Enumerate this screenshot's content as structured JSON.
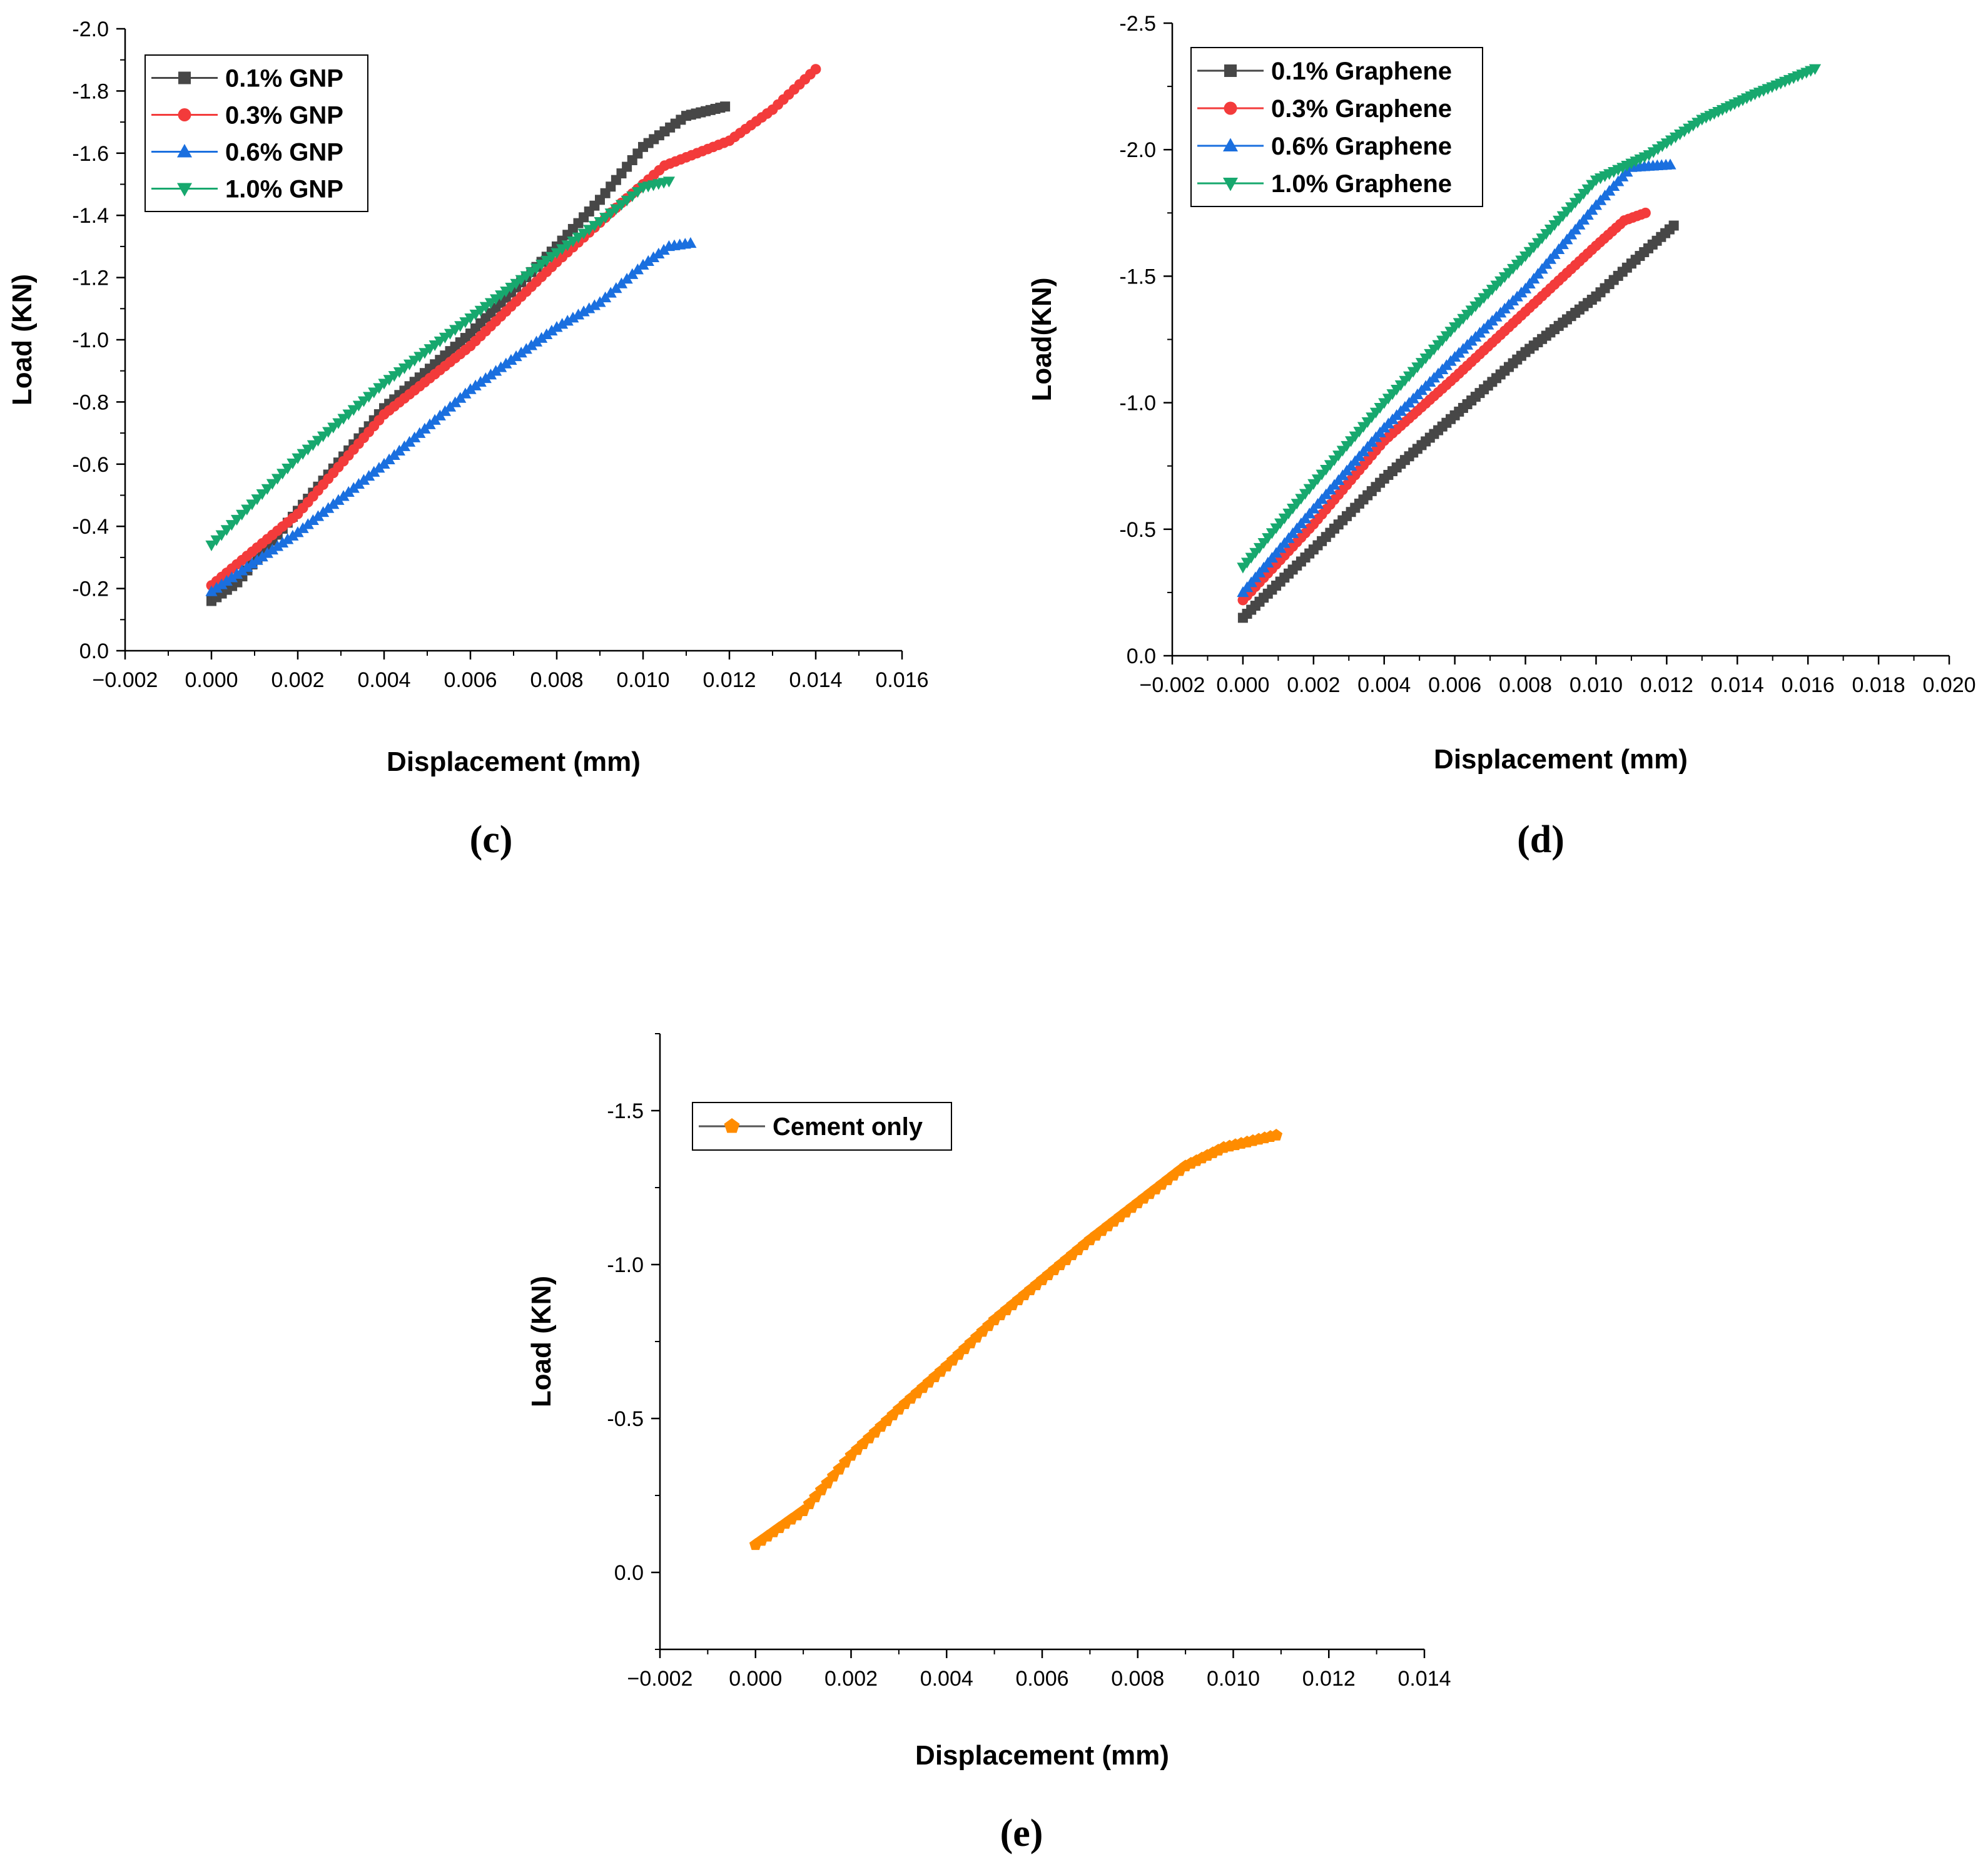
{
  "colors": {
    "c01": "#474747",
    "c03": "#f33b3b",
    "c06": "#1a6fdf",
    "c10": "#17a86e",
    "cement": "#ff8c00"
  },
  "chart_data": [
    {
      "id": "c",
      "type": "line",
      "panel_label": "(c)",
      "xlabel": "Displacement (mm)",
      "ylabel": "Load (KN)",
      "xlim": [
        -0.002,
        0.016
      ],
      "ylim": [
        0.0,
        -2.0
      ],
      "x_ticks": [
        -0.002,
        0.0,
        0.002,
        0.004,
        0.006,
        0.008,
        0.01,
        0.012,
        0.014,
        0.016
      ],
      "x_tick_labels": [
        "−0.002",
        "0.000",
        "0.002",
        "0.004",
        "0.006",
        "0.008",
        "0.010",
        "0.012",
        "0.014",
        "0.016"
      ],
      "y_ticks": [
        0.0,
        -0.2,
        -0.4,
        -0.6,
        -0.8,
        -1.0,
        -1.2,
        -1.4,
        -1.6,
        -1.8,
        -2.0
      ],
      "y_tick_labels": [
        "0.0",
        "-0.2",
        "-0.4",
        "-0.6",
        "-0.8",
        "-1.0",
        "-1.2",
        "-1.4",
        "-1.6",
        "-1.8",
        "-2.0"
      ],
      "legend_position": "top-left",
      "series": [
        {
          "name": "0.1% GNP",
          "color_key": "c01",
          "marker": "square",
          "points": [
            [
              0.0,
              -0.16
            ],
            [
              0.0006,
              -0.22
            ],
            [
              0.002,
              -0.45
            ],
            [
              0.004,
              -0.78
            ],
            [
              0.006,
              -1.02
            ],
            [
              0.008,
              -1.3
            ],
            [
              0.009,
              -1.45
            ],
            [
              0.01,
              -1.62
            ],
            [
              0.011,
              -1.72
            ],
            [
              0.0119,
              -1.75
            ]
          ]
        },
        {
          "name": "0.3% GNP",
          "color_key": "c03",
          "marker": "circle",
          "points": [
            [
              0.0,
              -0.21
            ],
            [
              0.002,
              -0.44
            ],
            [
              0.004,
              -0.76
            ],
            [
              0.006,
              -0.98
            ],
            [
              0.008,
              -1.25
            ],
            [
              0.0095,
              -1.44
            ],
            [
              0.0105,
              -1.56
            ],
            [
              0.012,
              -1.64
            ],
            [
              0.013,
              -1.74
            ],
            [
              0.014,
              -1.87
            ]
          ]
        },
        {
          "name": "0.6% GNP",
          "color_key": "c06",
          "marker": "triangle-up",
          "points": [
            [
              0.0,
              -0.19
            ],
            [
              0.002,
              -0.38
            ],
            [
              0.004,
              -0.6
            ],
            [
              0.006,
              -0.84
            ],
            [
              0.008,
              -1.04
            ],
            [
              0.009,
              -1.12
            ],
            [
              0.01,
              -1.24
            ],
            [
              0.0106,
              -1.3
            ],
            [
              0.0111,
              -1.31
            ]
          ]
        },
        {
          "name": "1.0% GNP",
          "color_key": "c10",
          "marker": "triangle-down",
          "points": [
            [
              0.0,
              -0.34
            ],
            [
              0.002,
              -0.62
            ],
            [
              0.004,
              -0.86
            ],
            [
              0.006,
              -1.07
            ],
            [
              0.008,
              -1.28
            ],
            [
              0.009,
              -1.38
            ],
            [
              0.01,
              -1.49
            ],
            [
              0.0106,
              -1.51
            ]
          ]
        }
      ]
    },
    {
      "id": "d",
      "type": "line",
      "panel_label": "(d)",
      "xlabel": "Displacement (mm)",
      "ylabel": "Load(KN)",
      "xlim": [
        -0.002,
        0.02
      ],
      "ylim": [
        0.0,
        -2.5
      ],
      "x_ticks": [
        -0.002,
        0.0,
        0.002,
        0.004,
        0.006,
        0.008,
        0.01,
        0.012,
        0.014,
        0.016,
        0.018,
        0.02
      ],
      "x_tick_labels": [
        "−0.002",
        "0.000",
        "0.002",
        "0.004",
        "0.006",
        "0.008",
        "0.010",
        "0.012",
        "0.014",
        "0.016",
        "0.018",
        "0.020"
      ],
      "y_ticks": [
        0.0,
        -0.5,
        -1.0,
        -1.5,
        -2.0,
        -2.5
      ],
      "y_tick_labels": [
        "0.0",
        "-0.5",
        "-1.0",
        "-1.5",
        "-2.0",
        "-2.5"
      ],
      "legend_position": "top-left",
      "series": [
        {
          "name": "0.1% Graphene",
          "color_key": "c01",
          "marker": "square",
          "points": [
            [
              0.0,
              -0.15
            ],
            [
              0.002,
              -0.42
            ],
            [
              0.004,
              -0.7
            ],
            [
              0.006,
              -0.95
            ],
            [
              0.008,
              -1.2
            ],
            [
              0.01,
              -1.42
            ],
            [
              0.011,
              -1.55
            ],
            [
              0.0122,
              -1.7
            ]
          ]
        },
        {
          "name": "0.3% Graphene",
          "color_key": "c03",
          "marker": "circle",
          "points": [
            [
              0.0,
              -0.22
            ],
            [
              0.002,
              -0.52
            ],
            [
              0.004,
              -0.85
            ],
            [
              0.006,
              -1.1
            ],
            [
              0.008,
              -1.36
            ],
            [
              0.01,
              -1.62
            ],
            [
              0.0108,
              -1.72
            ],
            [
              0.0114,
              -1.75
            ]
          ]
        },
        {
          "name": "0.6% Graphene",
          "color_key": "c06",
          "marker": "triangle-up",
          "points": [
            [
              0.0,
              -0.25
            ],
            [
              0.002,
              -0.58
            ],
            [
              0.004,
              -0.9
            ],
            [
              0.006,
              -1.18
            ],
            [
              0.008,
              -1.45
            ],
            [
              0.01,
              -1.78
            ],
            [
              0.011,
              -1.93
            ],
            [
              0.0121,
              -1.94
            ]
          ]
        },
        {
          "name": "1.0% Graphene",
          "color_key": "c10",
          "marker": "triangle-down",
          "points": [
            [
              0.0,
              -0.35
            ],
            [
              0.002,
              -0.68
            ],
            [
              0.004,
              -1.0
            ],
            [
              0.006,
              -1.3
            ],
            [
              0.008,
              -1.58
            ],
            [
              0.01,
              -1.88
            ],
            [
              0.0115,
              -1.98
            ],
            [
              0.013,
              -2.12
            ],
            [
              0.0145,
              -2.22
            ],
            [
              0.0162,
              -2.32
            ]
          ]
        }
      ]
    },
    {
      "id": "e",
      "type": "line",
      "panel_label": "(e)",
      "xlabel": "Displacement (mm)",
      "ylabel": "Load (KN)",
      "xlim": [
        -0.002,
        0.014
      ],
      "ylim": [
        0.25,
        -1.75
      ],
      "x_ticks": [
        -0.002,
        0.0,
        0.002,
        0.004,
        0.006,
        0.008,
        0.01,
        0.012,
        0.014
      ],
      "x_tick_labels": [
        "−0.002",
        "0.000",
        "0.002",
        "0.004",
        "0.006",
        "0.008",
        "0.010",
        "0.012",
        "0.014"
      ],
      "y_ticks": [
        0.0,
        -0.5,
        -1.0,
        -1.5
      ],
      "y_tick_labels": [
        "0.0",
        "-0.5",
        "-1.0",
        "-1.5"
      ],
      "legend_position": "top-left",
      "series": [
        {
          "name": "Cement only",
          "color_key": "cement",
          "marker": "pentagon",
          "points": [
            [
              0.0,
              -0.09
            ],
            [
              0.001,
              -0.2
            ],
            [
              0.002,
              -0.38
            ],
            [
              0.003,
              -0.53
            ],
            [
              0.004,
              -0.67
            ],
            [
              0.005,
              -0.82
            ],
            [
              0.006,
              -0.95
            ],
            [
              0.007,
              -1.08
            ],
            [
              0.008,
              -1.2
            ],
            [
              0.009,
              -1.32
            ],
            [
              0.0098,
              -1.38
            ],
            [
              0.0109,
              -1.42
            ]
          ]
        }
      ]
    }
  ]
}
